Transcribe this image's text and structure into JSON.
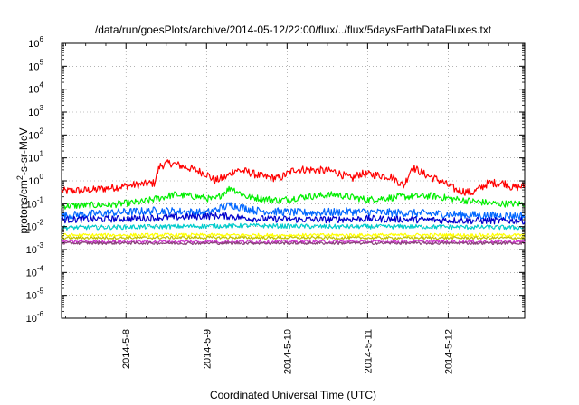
{
  "chart_data": {
    "type": "line",
    "title": "/data/run/goesPlots/archive/2014-05-12/22:00/flux/../flux/5daysEarthDataFluxes.txt",
    "xlabel": "Coordinated Universal Time (UTC)",
    "ylabel": {
      "prefix": "protons/cm",
      "sup": "2",
      "suffix": "-s-sr-MeV"
    },
    "y_scale": "log",
    "ylim_exp": [
      -6,
      6
    ],
    "y_ticks": [
      {
        "base": "10",
        "exp": "6",
        "value": 1000000.0
      },
      {
        "base": "10",
        "exp": "5",
        "value": 100000.0
      },
      {
        "base": "10",
        "exp": "4",
        "value": 10000.0
      },
      {
        "base": "10",
        "exp": "3",
        "value": 1000.0
      },
      {
        "base": "10",
        "exp": "2",
        "value": 100.0
      },
      {
        "base": "10",
        "exp": "1",
        "value": 10.0
      },
      {
        "base": "10",
        "exp": "0",
        "value": 1
      },
      {
        "base": "10",
        "exp": "-1",
        "value": 0.1
      },
      {
        "base": "10",
        "exp": "-2",
        "value": 0.01
      },
      {
        "base": "10",
        "exp": "-3",
        "value": 0.001
      },
      {
        "base": "10",
        "exp": "-4",
        "value": 0.0001
      },
      {
        "base": "10",
        "exp": "-5",
        "value": 1e-05
      },
      {
        "base": "10",
        "exp": "-6",
        "value": 1e-06
      }
    ],
    "x_range_days": [
      7.2,
      12.95
    ],
    "x_ticks": [
      {
        "label": "2014-5-8",
        "day": 8
      },
      {
        "label": "2014-5-9",
        "day": 9
      },
      {
        "label": "2014-5-10",
        "day": 10
      },
      {
        "label": "2014-5-11",
        "day": 11
      },
      {
        "label": "2014-5-12",
        "day": 12
      }
    ],
    "grid": true,
    "series": [
      {
        "color": "#ff0000",
        "noise": 0.35,
        "points": [
          [
            7.2,
            0.35
          ],
          [
            7.6,
            0.4
          ],
          [
            8.0,
            0.6
          ],
          [
            8.35,
            0.8
          ],
          [
            8.42,
            4.5
          ],
          [
            8.55,
            6
          ],
          [
            8.8,
            3.5
          ],
          [
            9.0,
            2.0
          ],
          [
            9.1,
            1.0
          ],
          [
            9.25,
            1.5
          ],
          [
            9.35,
            3.0
          ],
          [
            9.5,
            2.5
          ],
          [
            9.7,
            1.5
          ],
          [
            9.9,
            1.3
          ],
          [
            10.0,
            2.0
          ],
          [
            10.1,
            3.2
          ],
          [
            10.35,
            3.0
          ],
          [
            10.6,
            2.5
          ],
          [
            10.8,
            1.2
          ],
          [
            10.9,
            2.0
          ],
          [
            11.1,
            1.8
          ],
          [
            11.3,
            1.5
          ],
          [
            11.45,
            0.6
          ],
          [
            11.55,
            4.0
          ],
          [
            11.7,
            2.0
          ],
          [
            11.9,
            1.0
          ],
          [
            12.1,
            0.4
          ],
          [
            12.3,
            0.3
          ],
          [
            12.5,
            0.8
          ],
          [
            12.7,
            0.8
          ],
          [
            12.8,
            0.5
          ],
          [
            12.95,
            0.6
          ]
        ]
      },
      {
        "color": "#00ee00",
        "noise": 0.3,
        "points": [
          [
            7.2,
            0.08
          ],
          [
            7.8,
            0.09
          ],
          [
            8.2,
            0.12
          ],
          [
            8.6,
            0.25
          ],
          [
            8.9,
            0.2
          ],
          [
            9.1,
            0.15
          ],
          [
            9.3,
            0.5
          ],
          [
            9.5,
            0.2
          ],
          [
            9.9,
            0.14
          ],
          [
            10.2,
            0.2
          ],
          [
            10.6,
            0.25
          ],
          [
            11.0,
            0.15
          ],
          [
            11.4,
            0.2
          ],
          [
            11.8,
            0.22
          ],
          [
            12.2,
            0.14
          ],
          [
            12.6,
            0.1
          ],
          [
            12.95,
            0.1
          ]
        ]
      },
      {
        "color": "#0066ff",
        "noise": 0.35,
        "points": [
          [
            7.2,
            0.03
          ],
          [
            7.8,
            0.04
          ],
          [
            8.4,
            0.05
          ],
          [
            9.0,
            0.04
          ],
          [
            9.3,
            0.09
          ],
          [
            9.6,
            0.05
          ],
          [
            10.2,
            0.04
          ],
          [
            10.8,
            0.045
          ],
          [
            11.4,
            0.04
          ],
          [
            12.0,
            0.035
          ],
          [
            12.5,
            0.03
          ],
          [
            12.95,
            0.03
          ]
        ]
      },
      {
        "color": "#0000cc",
        "noise": 0.3,
        "points": [
          [
            7.2,
            0.02
          ],
          [
            8.0,
            0.022
          ],
          [
            8.5,
            0.025
          ],
          [
            9.2,
            0.03
          ],
          [
            9.6,
            0.022
          ],
          [
            10.4,
            0.02
          ],
          [
            11.0,
            0.022
          ],
          [
            11.6,
            0.02
          ],
          [
            12.4,
            0.018
          ],
          [
            12.95,
            0.018
          ]
        ]
      },
      {
        "color": "#00cccc",
        "noise": 0.2,
        "points": [
          [
            7.2,
            0.009
          ],
          [
            8.5,
            0.01
          ],
          [
            9.5,
            0.011
          ],
          [
            10.5,
            0.01
          ],
          [
            11.5,
            0.01
          ],
          [
            12.95,
            0.009
          ]
        ]
      },
      {
        "color": "#ffff00",
        "noise": 0.15,
        "points": [
          [
            7.2,
            0.0042
          ],
          [
            8.5,
            0.0043
          ],
          [
            10.0,
            0.0042
          ],
          [
            11.5,
            0.0043
          ],
          [
            12.95,
            0.0042
          ]
        ]
      },
      {
        "color": "#c0c000",
        "noise": 0.12,
        "points": [
          [
            7.2,
            0.0032
          ],
          [
            9.0,
            0.0033
          ],
          [
            11.0,
            0.0032
          ],
          [
            12.95,
            0.0032
          ]
        ]
      },
      {
        "color": "#cc33cc",
        "noise": 0.15,
        "points": [
          [
            7.2,
            0.0022
          ],
          [
            9.0,
            0.0022
          ],
          [
            11.0,
            0.0022
          ],
          [
            12.95,
            0.0022
          ]
        ]
      },
      {
        "color": "#884477",
        "noise": 0.12,
        "points": [
          [
            7.2,
            0.0019
          ],
          [
            9.0,
            0.0019
          ],
          [
            11.0,
            0.0019
          ],
          [
            12.95,
            0.0019
          ]
        ]
      }
    ]
  }
}
